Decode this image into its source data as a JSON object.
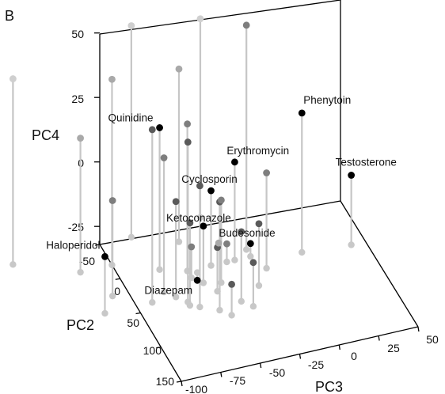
{
  "chart_data": {
    "type": "scatter",
    "panel_label": "B",
    "projection": "3d",
    "axes": {
      "pc2": {
        "label": "PC2",
        "ticks": [
          "-50",
          "0",
          "50",
          "100",
          "150"
        ]
      },
      "pc3": {
        "label": "PC3",
        "ticks": [
          "-100",
          "-75",
          "-50",
          "-25",
          "0",
          "25",
          "50"
        ]
      },
      "pc4": {
        "label": "PC4",
        "ticks": [
          "50",
          "25",
          "0",
          "-25"
        ]
      }
    },
    "labeled_compounds": [
      {
        "name": "Quinidine",
        "pc2": 0,
        "pc3": -75,
        "pc4": 23
      },
      {
        "name": "Phenytoin",
        "pc2": 20,
        "pc3": 10,
        "pc4": 22
      },
      {
        "name": "Haloperidol",
        "pc2": 40,
        "pc3": -120,
        "pc4": -10
      },
      {
        "name": "Erythromycin",
        "pc2": 10,
        "pc3": -30,
        "pc4": 6
      },
      {
        "name": "Cyclosporin",
        "pc2": 10,
        "pc3": -45,
        "pc4": -3
      },
      {
        "name": "Ketoconazole",
        "pc2": 30,
        "pc3": -55,
        "pc4": -10
      },
      {
        "name": "Testosterone",
        "pc2": 25,
        "pc3": 40,
        "pc4": -5
      },
      {
        "name": "Budesonide",
        "pc2": 10,
        "pc3": -20,
        "pc4": -27
      },
      {
        "name": "Diazepam",
        "pc2": 15,
        "pc3": -55,
        "pc4": -35
      }
    ],
    "unlabeled_points": [
      {
        "pc2": -50,
        "pc3": -155,
        "pc4": 40
      },
      {
        "pc2": -50,
        "pc3": -80,
        "pc4": 50
      },
      {
        "pc2": -55,
        "pc3": -35,
        "pc4": 45
      },
      {
        "pc2": -20,
        "pc3": -100,
        "pc4": 40
      },
      {
        "pc2": 0,
        "pc3": -20,
        "pc4": 55
      },
      {
        "pc2": -30,
        "pc3": -55,
        "pc4": 35
      },
      {
        "pc2": 10,
        "pc3": -60,
        "pc4": 25
      },
      {
        "pc2": -20,
        "pc3": -120,
        "pc4": 20
      },
      {
        "pc2": 40,
        "pc3": -90,
        "pc4": 35
      },
      {
        "pc2": 50,
        "pc3": -70,
        "pc4": 30
      },
      {
        "pc2": 30,
        "pc3": -80,
        "pc4": 20
      },
      {
        "pc2": 60,
        "pc3": -65,
        "pc4": 15
      },
      {
        "pc2": 20,
        "pc3": -110,
        "pc4": 5
      },
      {
        "pc2": 70,
        "pc3": -55,
        "pc4": 10
      },
      {
        "pc2": 40,
        "pc3": -75,
        "pc4": 5
      },
      {
        "pc2": 55,
        "pc3": -70,
        "pc4": 0
      },
      {
        "pc2": 35,
        "pc3": -45,
        "pc4": 0
      },
      {
        "pc2": 65,
        "pc3": -40,
        "pc4": -5
      },
      {
        "pc2": 50,
        "pc3": -25,
        "pc4": -8
      },
      {
        "pc2": 75,
        "pc3": -35,
        "pc4": -15
      },
      {
        "pc2": 30,
        "pc3": -15,
        "pc4": 5
      },
      {
        "pc2": 45,
        "pc3": -50,
        "pc4": -15
      },
      {
        "pc2": 80,
        "pc3": -50,
        "pc4": -20
      },
      {
        "pc2": 20,
        "pc3": -60,
        "pc4": -20
      },
      {
        "pc2": 10,
        "pc3": -35,
        "pc4": -25
      },
      {
        "pc2": -10,
        "pc3": -35,
        "pc4": -30
      }
    ],
    "grid": false,
    "legend": "none"
  }
}
